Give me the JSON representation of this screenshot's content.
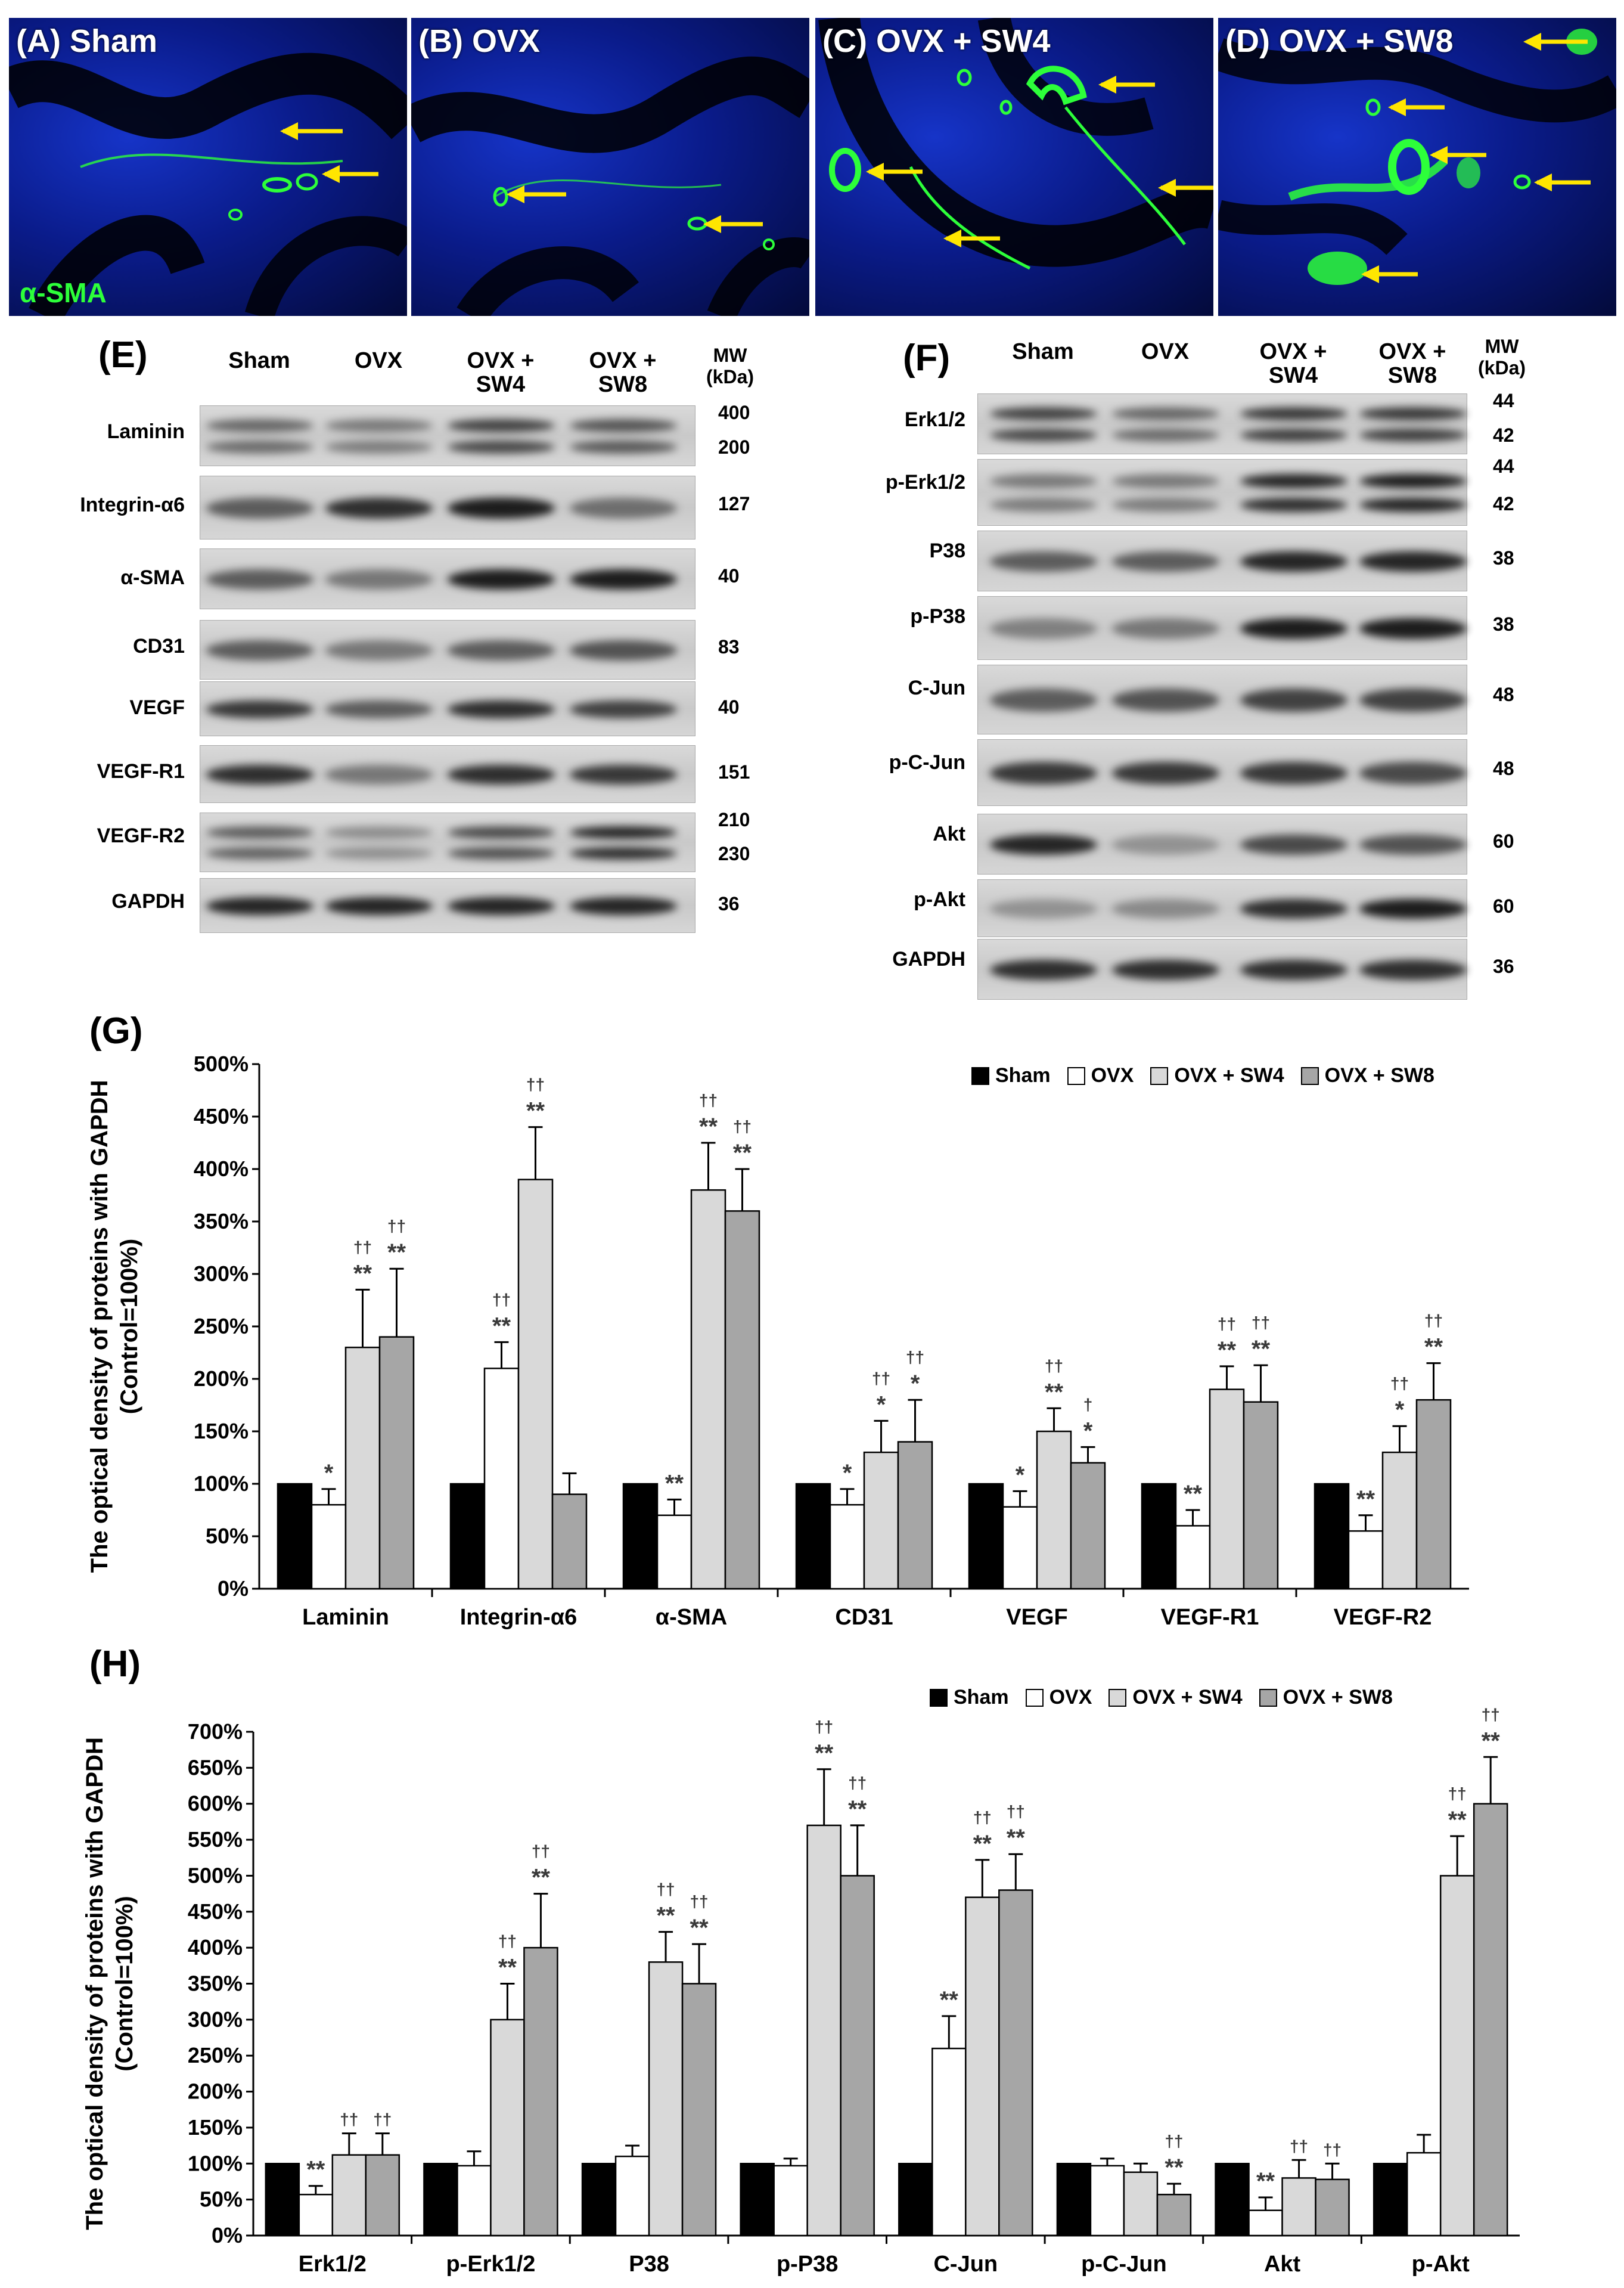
{
  "micrographs": [
    {
      "label": "(A) Sham"
    },
    {
      "label": "(B) OVX"
    },
    {
      "label": "(C) OVX + SW4"
    },
    {
      "label": "(D) OVX + SW8"
    }
  ],
  "stain_label": "α-SMA",
  "colors": {
    "sham": "#000000",
    "ovx": "#ffffff",
    "sw4": "#d9d9d9",
    "sw8": "#a6a6a6",
    "arrow": "#ffe600",
    "stain": "#2dff3a",
    "nuclei": "#1634c8"
  },
  "blotE": {
    "letter": "(E)",
    "lanes": [
      "Sham",
      "OVX",
      "OVX +\nSW4",
      "OVX +\nSW8"
    ],
    "mw_header": "MW\n(kDa)",
    "rows": [
      {
        "name": "Laminin",
        "mw": [
          "400",
          "200"
        ],
        "int": [
          0.55,
          0.45,
          0.75,
          0.65
        ]
      },
      {
        "name": "Integrin-α6",
        "mw": [
          "127"
        ],
        "int": [
          0.6,
          0.85,
          0.95,
          0.5
        ]
      },
      {
        "name": "α-SMA",
        "mw": [
          "40"
        ],
        "int": [
          0.6,
          0.45,
          0.95,
          0.95
        ]
      },
      {
        "name": "CD31",
        "mw": [
          "83"
        ],
        "int": [
          0.6,
          0.45,
          0.6,
          0.65
        ]
      },
      {
        "name": "VEGF",
        "mw": [
          "40"
        ],
        "int": [
          0.8,
          0.6,
          0.85,
          0.75
        ]
      },
      {
        "name": "VEGF-R1",
        "mw": [
          "151"
        ],
        "int": [
          0.85,
          0.45,
          0.85,
          0.8
        ]
      },
      {
        "name": "VEGF-R2",
        "mw": [
          "210",
          "230"
        ],
        "int": [
          0.6,
          0.35,
          0.7,
          0.9
        ]
      },
      {
        "name": "GAPDH",
        "mw": [
          "36"
        ],
        "int": [
          0.9,
          0.9,
          0.9,
          0.9
        ]
      }
    ]
  },
  "blotF": {
    "letter": "(F)",
    "lanes": [
      "Sham",
      "OVX",
      "OVX +\nSW4",
      "OVX +\nSW8"
    ],
    "mw_header": "MW\n(kDa)",
    "rows": [
      {
        "name": "Erk1/2",
        "mw": [
          "44",
          "42"
        ],
        "int": [
          0.75,
          0.55,
          0.8,
          0.8
        ]
      },
      {
        "name": "p-Erk1/2",
        "mw": [
          "44",
          "42"
        ],
        "int": [
          0.45,
          0.45,
          0.9,
          0.95
        ]
      },
      {
        "name": "P38",
        "mw": [
          "38"
        ],
        "int": [
          0.6,
          0.6,
          0.9,
          0.9
        ]
      },
      {
        "name": "p-P38",
        "mw": [
          "38"
        ],
        "int": [
          0.4,
          0.45,
          0.95,
          0.95
        ]
      },
      {
        "name": "C-Jun",
        "mw": [
          "48"
        ],
        "int": [
          0.6,
          0.65,
          0.75,
          0.75
        ]
      },
      {
        "name": "p-C-Jun",
        "mw": [
          "48"
        ],
        "int": [
          0.8,
          0.8,
          0.8,
          0.7
        ]
      },
      {
        "name": "Akt",
        "mw": [
          "60"
        ],
        "int": [
          0.9,
          0.3,
          0.7,
          0.65
        ]
      },
      {
        "name": "p-Akt",
        "mw": [
          "60"
        ],
        "int": [
          0.3,
          0.35,
          0.85,
          0.95
        ]
      },
      {
        "name": "GAPDH",
        "mw": [
          "36"
        ],
        "int": [
          0.85,
          0.85,
          0.85,
          0.85
        ]
      }
    ]
  },
  "chart_data": [
    {
      "panel": "(G)",
      "type": "bar",
      "ylabel": "The optical density of proteins with GAPDH (Control=100%)",
      "ylim": [
        0,
        500
      ],
      "yticks": [
        "0%",
        "50%",
        "100%",
        "150%",
        "200%",
        "250%",
        "300%",
        "350%",
        "400%",
        "450%",
        "500%"
      ],
      "legend_position": "top-right",
      "categories": [
        "Laminin",
        "Integrin-α6",
        "α-SMA",
        "CD31",
        "VEGF",
        "VEGF-R1",
        "VEGF-R2"
      ],
      "series": [
        {
          "name": "Sham",
          "values": [
            100,
            100,
            100,
            100,
            100,
            100,
            100
          ],
          "err": [
            0,
            0,
            0,
            0,
            0,
            0,
            0
          ],
          "marks": [
            [
              "",
              ""
            ],
            [
              "",
              ""
            ],
            [
              "",
              ""
            ],
            [
              "",
              ""
            ],
            [
              "",
              ""
            ],
            [
              "",
              ""
            ],
            [
              "",
              ""
            ]
          ]
        },
        {
          "name": "OVX",
          "values": [
            80,
            210,
            70,
            80,
            78,
            60,
            55
          ],
          "err": [
            15,
            25,
            15,
            15,
            15,
            15,
            15
          ],
          "marks": [
            [
              "*",
              ""
            ],
            [
              "**",
              "††"
            ],
            [
              "**",
              ""
            ],
            [
              "*",
              ""
            ],
            [
              "*",
              ""
            ],
            [
              "**",
              ""
            ],
            [
              "**",
              ""
            ]
          ]
        },
        {
          "name": "OVX + SW4",
          "values": [
            230,
            390,
            380,
            130,
            150,
            190,
            130
          ],
          "err": [
            55,
            50,
            45,
            30,
            22,
            22,
            25
          ],
          "marks": [
            [
              "**",
              "††"
            ],
            [
              "**",
              "††"
            ],
            [
              "**",
              "††"
            ],
            [
              "*",
              "††"
            ],
            [
              "**",
              "††"
            ],
            [
              "**",
              "††"
            ],
            [
              "*",
              "††"
            ]
          ]
        },
        {
          "name": "OVX + SW8",
          "values": [
            240,
            90,
            360,
            140,
            120,
            178,
            180
          ],
          "err": [
            65,
            20,
            40,
            40,
            15,
            35,
            35
          ],
          "marks": [
            [
              "**",
              "††"
            ],
            [
              "",
              ""
            ],
            [
              "**",
              "††"
            ],
            [
              "*",
              "††"
            ],
            [
              "*",
              "†"
            ],
            [
              "**",
              "††"
            ],
            [
              "**",
              "††"
            ]
          ]
        }
      ]
    },
    {
      "panel": "(H)",
      "type": "bar",
      "ylabel": "The optical density of proteins with GAPDH (Control=100%)",
      "ylim": [
        0,
        700
      ],
      "yticks": [
        "0%",
        "50%",
        "100%",
        "150%",
        "200%",
        "250%",
        "300%",
        "350%",
        "400%",
        "450%",
        "500%",
        "550%",
        "600%",
        "650%",
        "700%"
      ],
      "legend_position": "top-right",
      "categories": [
        "Erk1/2",
        "p-Erk1/2",
        "P38",
        "p-P38",
        "C-Jun",
        "p-C-Jun",
        "Akt",
        "p-Akt"
      ],
      "series": [
        {
          "name": "Sham",
          "values": [
            100,
            100,
            100,
            100,
            100,
            100,
            100,
            100
          ],
          "err": [
            0,
            0,
            0,
            0,
            0,
            0,
            0,
            0
          ],
          "marks": [
            [
              "",
              ""
            ],
            [
              "",
              ""
            ],
            [
              "",
              ""
            ],
            [
              "",
              ""
            ],
            [
              "",
              ""
            ],
            [
              "",
              ""
            ],
            [
              "",
              ""
            ],
            [
              "",
              ""
            ]
          ]
        },
        {
          "name": "OVX",
          "values": [
            57,
            97,
            110,
            97,
            260,
            97,
            35,
            115
          ],
          "err": [
            12,
            20,
            15,
            10,
            45,
            10,
            18,
            25
          ],
          "marks": [
            [
              "**",
              ""
            ],
            [
              "",
              ""
            ],
            [
              "",
              ""
            ],
            [
              "",
              ""
            ],
            [
              "**",
              ""
            ],
            [
              "",
              ""
            ],
            [
              "**",
              ""
            ],
            [
              "",
              ""
            ]
          ]
        },
        {
          "name": "OVX + SW4",
          "values": [
            112,
            300,
            380,
            570,
            470,
            88,
            80,
            500
          ],
          "err": [
            30,
            50,
            42,
            78,
            52,
            12,
            25,
            55
          ],
          "marks": [
            [
              "",
              "††"
            ],
            [
              "**",
              "††"
            ],
            [
              "**",
              "††"
            ],
            [
              "**",
              "††"
            ],
            [
              "**",
              "††"
            ],
            [
              "",
              ""
            ],
            [
              "",
              "††"
            ],
            [
              "**",
              "††"
            ]
          ]
        },
        {
          "name": "OVX + SW8",
          "values": [
            112,
            400,
            350,
            500,
            480,
            57,
            78,
            600
          ],
          "err": [
            30,
            75,
            55,
            70,
            50,
            15,
            22,
            65
          ],
          "marks": [
            [
              "",
              "††"
            ],
            [
              "**",
              "††"
            ],
            [
              "**",
              "††"
            ],
            [
              "**",
              "††"
            ],
            [
              "**",
              "††"
            ],
            [
              "**",
              "††"
            ],
            [
              "",
              "††"
            ],
            [
              "**",
              "††"
            ]
          ]
        }
      ]
    }
  ]
}
